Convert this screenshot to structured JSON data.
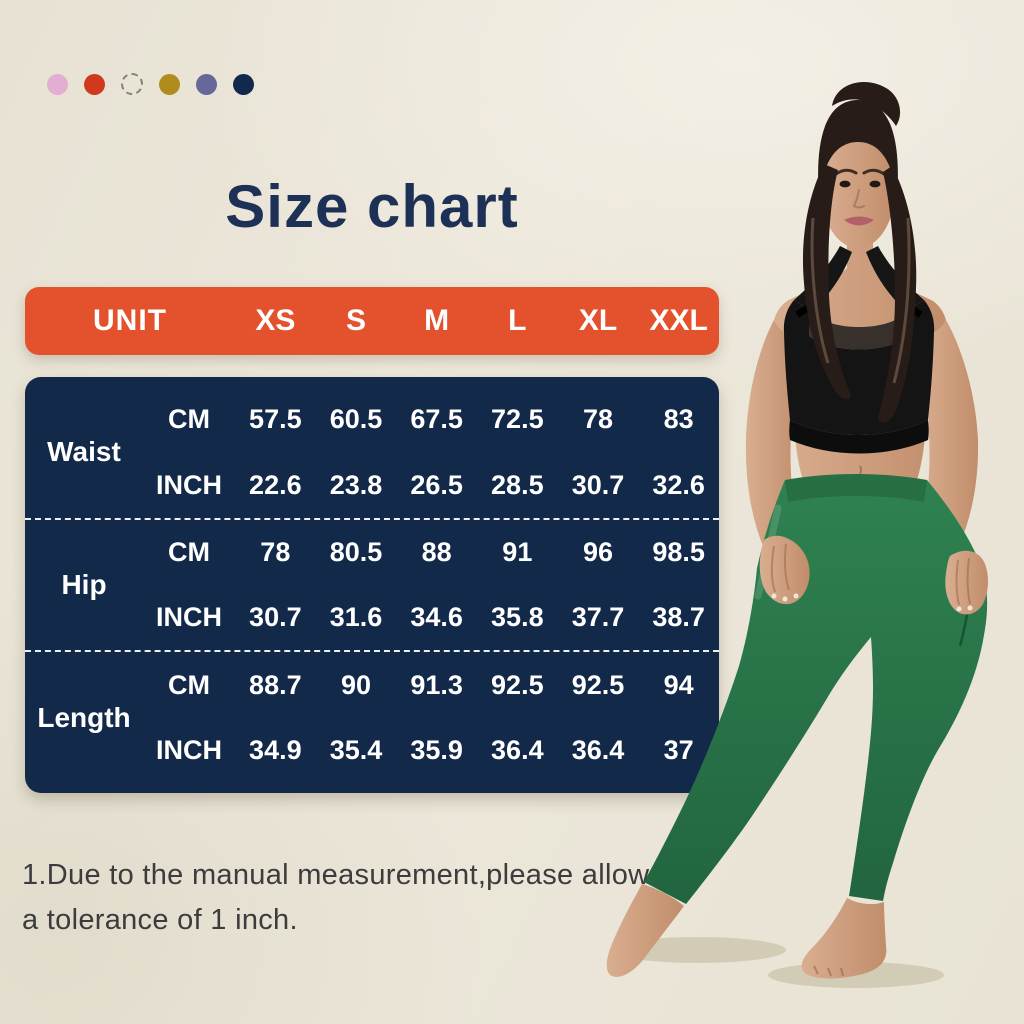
{
  "title_note": "product size chart infographic",
  "chart_data": {
    "type": "table",
    "title": "Size chart",
    "header": [
      "UNIT",
      "XS",
      "S",
      "M",
      "L",
      "XL",
      "XXL"
    ],
    "sections": [
      {
        "label": "Waist",
        "rows": [
          {
            "unit": "CM",
            "values": [
              "57.5",
              "60.5",
              "67.5",
              "72.5",
              "78",
              "83"
            ]
          },
          {
            "unit": "INCH",
            "values": [
              "22.6",
              "23.8",
              "26.5",
              "28.5",
              "30.7",
              "32.6"
            ]
          }
        ]
      },
      {
        "label": "Hip",
        "rows": [
          {
            "unit": "CM",
            "values": [
              "78",
              "80.5",
              "88",
              "91",
              "96",
              "98.5"
            ]
          },
          {
            "unit": "INCH",
            "values": [
              "30.7",
              "31.6",
              "34.6",
              "35.8",
              "37.7",
              "38.7"
            ]
          }
        ]
      },
      {
        "label": "Length",
        "rows": [
          {
            "unit": "CM",
            "values": [
              "88.7",
              "90",
              "91.3",
              "92.5",
              "92.5",
              "94"
            ]
          },
          {
            "unit": "INCH",
            "values": [
              "34.9",
              "35.4",
              "35.9",
              "36.4",
              "36.4",
              "37"
            ]
          }
        ]
      }
    ]
  },
  "note": {
    "line1": "1.Due to the manual measurement,please allow",
    "line2": "a tolerance of 1 inch."
  },
  "color_swatches": [
    {
      "name": "pink",
      "color": "#e3aed3",
      "style": "filled"
    },
    {
      "name": "red-orange",
      "color": "#cf3a1c",
      "style": "filled"
    },
    {
      "name": "white-outline",
      "color": "",
      "style": "dashed-outline"
    },
    {
      "name": "gold",
      "color": "#b08b1e",
      "style": "filled"
    },
    {
      "name": "purple",
      "color": "#67679a",
      "style": "filled"
    },
    {
      "name": "navy",
      "color": "#12294e",
      "style": "filled"
    }
  ],
  "colors": {
    "background": "#e9e4d6",
    "header_bg": "#e4512d",
    "table_bg": "#13294a",
    "title_text": "#1d3156",
    "table_text": "#ffffff",
    "note_text": "#3c3c3c",
    "leggings_green": "#2e7d4e",
    "bra_black": "#161616",
    "skin": "#cfa183",
    "hair": "#271c17"
  },
  "model": {
    "description": "woman in black racerback sports bra and green high-waist leggings, standing barefoot"
  }
}
